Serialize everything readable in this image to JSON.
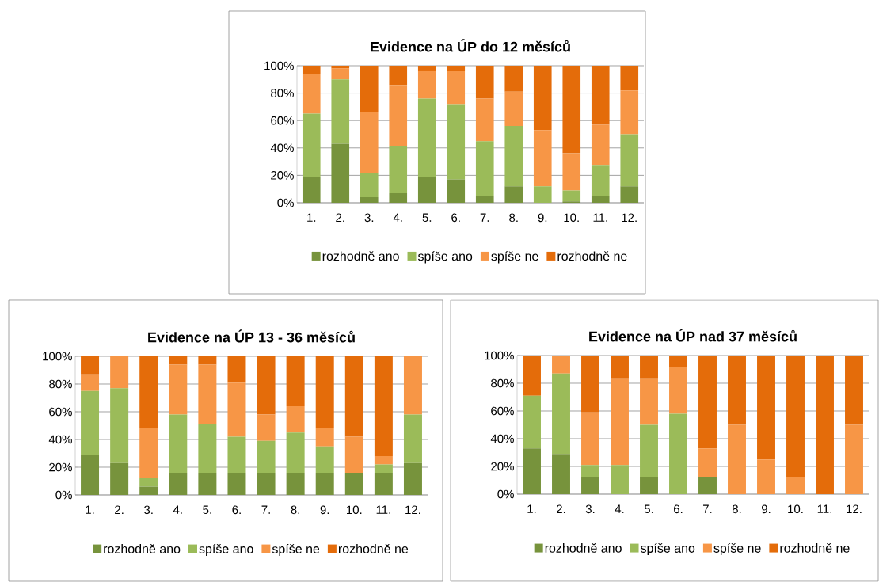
{
  "chart_data": [
    {
      "type": "bar",
      "stacked": true,
      "title": "Evidence na ÚP do 12 měsíců",
      "categories": [
        "1.",
        "2.",
        "3.",
        "4.",
        "5.",
        "6.",
        "7.",
        "8.",
        "9.",
        "10.",
        "11.",
        "12."
      ],
      "series": [
        {
          "name": "rozhodně ano",
          "color": "#77933c",
          "values": [
            19,
            43,
            4,
            7,
            19,
            17,
            5,
            12,
            0,
            1,
            5,
            12
          ]
        },
        {
          "name": "spíše ano",
          "color": "#9bbb59",
          "values": [
            46,
            47,
            18,
            34,
            57,
            55,
            40,
            44,
            12,
            8,
            22,
            38
          ]
        },
        {
          "name": "spíše ne",
          "color": "#f79646",
          "values": [
            29,
            8,
            44,
            45,
            20,
            24,
            31,
            25,
            41,
            27,
            30,
            32
          ]
        },
        {
          "name": "rozhodně ne",
          "color": "#e46c0a",
          "values": [
            6,
            2,
            34,
            14,
            4,
            4,
            24,
            19,
            47,
            64,
            43,
            18
          ]
        }
      ],
      "ylim": [
        0,
        100
      ],
      "yticks": [
        {
          "value": 0,
          "label": "0%"
        },
        {
          "value": 20,
          "label": "20%"
        },
        {
          "value": 40,
          "label": "40%"
        },
        {
          "value": 60,
          "label": "60%"
        },
        {
          "value": 80,
          "label": "80%"
        },
        {
          "value": 100,
          "label": "100%"
        }
      ],
      "grid": "y",
      "legend": "bottom"
    },
    {
      "type": "bar",
      "stacked": true,
      "title": "Evidence na ÚP 13 - 36 měsíců",
      "categories": [
        "1.",
        "2.",
        "3.",
        "4.",
        "5.",
        "6.",
        "7.",
        "8.",
        "9.",
        "10.",
        "11.",
        "12."
      ],
      "series": [
        {
          "name": "rozhodně ano",
          "color": "#77933c",
          "values": [
            29,
            23,
            6,
            16,
            16,
            16,
            16,
            16,
            16,
            16,
            16,
            23
          ]
        },
        {
          "name": "spíše ano",
          "color": "#9bbb59",
          "values": [
            46,
            54,
            6,
            42,
            35,
            26,
            23,
            29,
            19,
            0,
            6,
            35
          ]
        },
        {
          "name": "spíše ne",
          "color": "#f79646",
          "values": [
            12,
            23,
            36,
            36,
            43,
            39,
            19,
            19,
            13,
            26,
            6,
            42
          ]
        },
        {
          "name": "rozhodně ne",
          "color": "#e46c0a",
          "values": [
            13,
            0,
            52,
            6,
            6,
            19,
            42,
            36,
            52,
            58,
            72,
            0
          ]
        }
      ],
      "ylim": [
        0,
        100
      ],
      "yticks": [
        {
          "value": 0,
          "label": "0%"
        },
        {
          "value": 20,
          "label": "20%"
        },
        {
          "value": 40,
          "label": "40%"
        },
        {
          "value": 60,
          "label": "60%"
        },
        {
          "value": 80,
          "label": "80%"
        },
        {
          "value": 100,
          "label": "100%"
        }
      ],
      "grid": "y",
      "legend": "bottom"
    },
    {
      "type": "bar",
      "stacked": true,
      "title": "Evidence na ÚP nad 37 měsíců",
      "categories": [
        "1.",
        "2.",
        "3.",
        "4.",
        "5.",
        "6.",
        "7.",
        "8.",
        "9.",
        "10.",
        "11.",
        "12."
      ],
      "series": [
        {
          "name": "rozhodně ano",
          "color": "#77933c",
          "values": [
            33,
            29,
            12,
            0,
            12,
            0,
            12,
            0,
            0,
            0,
            0,
            0
          ]
        },
        {
          "name": "spíše ano",
          "color": "#9bbb59",
          "values": [
            38,
            58,
            9,
            21,
            38,
            58,
            0,
            0,
            0,
            0,
            0,
            0
          ]
        },
        {
          "name": "spíše ne",
          "color": "#f79646",
          "values": [
            0,
            13,
            38,
            62,
            33,
            34,
            21,
            50,
            25,
            12,
            0,
            50
          ]
        },
        {
          "name": "rozhodně ne",
          "color": "#e46c0a",
          "values": [
            29,
            0,
            41,
            17,
            17,
            8,
            67,
            50,
            75,
            88,
            100,
            50
          ]
        }
      ],
      "ylim": [
        0,
        100
      ],
      "yticks": [
        {
          "value": 0,
          "label": "0%"
        },
        {
          "value": 20,
          "label": "20%"
        },
        {
          "value": 40,
          "label": "40%"
        },
        {
          "value": 60,
          "label": "60%"
        },
        {
          "value": 80,
          "label": "80%"
        },
        {
          "value": 100,
          "label": "100%"
        }
      ],
      "grid": "y",
      "legend": "bottom"
    }
  ]
}
